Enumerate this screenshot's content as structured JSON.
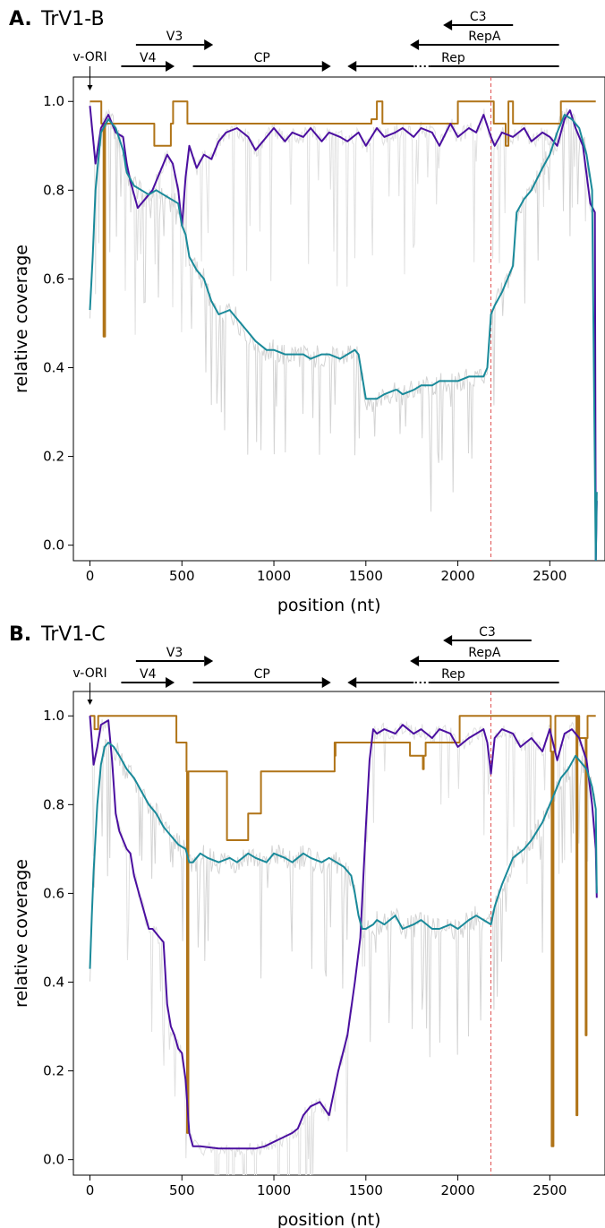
{
  "chart_data": [
    {
      "type": "line",
      "panel_letter": "A.",
      "panel_name": "TrV1-B",
      "xlabel": "position (nt)",
      "ylabel": "relative coverage",
      "xlim": [
        -90,
        2800
      ],
      "ylim": [
        -0.035,
        1.055
      ],
      "xticks": [
        0,
        500,
        1000,
        1500,
        2000,
        2500
      ],
      "yticks": [
        "0.0",
        "0.2",
        "0.4",
        "0.6",
        "0.8",
        "1.0"
      ],
      "reference_line_x": 2180,
      "origin_label": "v-ORI",
      "genes": [
        {
          "name": "V3",
          "start": 250,
          "end": 670,
          "direction": "forward"
        },
        {
          "name": "V4",
          "start": 170,
          "end": 460,
          "direction": "forward"
        },
        {
          "name": "CP",
          "start": 560,
          "end": 1310,
          "direction": "forward"
        },
        {
          "name": "C3",
          "start": 2300,
          "end": 1920,
          "direction": "reverse"
        },
        {
          "name": "RepA",
          "start": 2550,
          "end": 1740,
          "direction": "reverse"
        },
        {
          "name": "Rep",
          "start": 2550,
          "end": 1400,
          "direction": "reverse",
          "dotted_from": 1760,
          "dotted_to": 1850
        }
      ],
      "series": [
        {
          "color": "#b07418",
          "style": "step",
          "x": [
            0,
            60,
            62,
            72,
            74,
            80,
            82,
            120,
            350,
            440,
            452,
            520,
            530,
            1520,
            1530,
            1560,
            1590,
            1810,
            1990,
            2000,
            2170,
            2195,
            2260,
            2275,
            2300,
            2550,
            2560,
            2750
          ],
          "y": [
            1.0,
            1.0,
            0.95,
            0.95,
            0.47,
            0.47,
            0.95,
            0.95,
            0.9,
            0.95,
            1.0,
            1.0,
            0.95,
            0.95,
            0.96,
            1.0,
            0.95,
            0.95,
            0.95,
            1.0,
            1.0,
            0.95,
            0.9,
            1.0,
            0.95,
            0.95,
            1.0,
            1.0
          ]
        },
        {
          "color": "#4b0fa0",
          "style": "line",
          "x": [
            0,
            30,
            60,
            100,
            140,
            180,
            200,
            220,
            260,
            300,
            340,
            380,
            420,
            450,
            480,
            500,
            520,
            540,
            580,
            620,
            660,
            700,
            740,
            800,
            860,
            900,
            960,
            1000,
            1060,
            1100,
            1160,
            1200,
            1260,
            1300,
            1360,
            1400,
            1460,
            1500,
            1560,
            1600,
            1660,
            1700,
            1760,
            1800,
            1860,
            1900,
            1960,
            2000,
            2060,
            2100,
            2140,
            2180,
            2200,
            2240,
            2300,
            2360,
            2400,
            2460,
            2500,
            2540,
            2580,
            2610,
            2640,
            2680,
            2720,
            2745,
            2750,
            2755
          ],
          "y": [
            0.99,
            0.86,
            0.94,
            0.97,
            0.93,
            0.92,
            0.86,
            0.82,
            0.76,
            0.78,
            0.8,
            0.84,
            0.88,
            0.86,
            0.8,
            0.72,
            0.83,
            0.9,
            0.85,
            0.88,
            0.87,
            0.91,
            0.93,
            0.94,
            0.92,
            0.89,
            0.92,
            0.94,
            0.91,
            0.93,
            0.92,
            0.94,
            0.91,
            0.93,
            0.92,
            0.91,
            0.93,
            0.9,
            0.94,
            0.92,
            0.93,
            0.94,
            0.92,
            0.94,
            0.93,
            0.9,
            0.95,
            0.92,
            0.94,
            0.93,
            0.97,
            0.92,
            0.9,
            0.93,
            0.92,
            0.94,
            0.91,
            0.93,
            0.92,
            0.9,
            0.96,
            0.98,
            0.94,
            0.9,
            0.77,
            0.75,
            -0.04,
            0.1
          ]
        },
        {
          "color": "#1a8a9a",
          "style": "line",
          "x": [
            0,
            15,
            30,
            60,
            100,
            140,
            180,
            200,
            240,
            280,
            320,
            360,
            400,
            440,
            480,
            500,
            520,
            540,
            580,
            620,
            660,
            700,
            760,
            800,
            860,
            900,
            960,
            1000,
            1060,
            1100,
            1160,
            1200,
            1260,
            1300,
            1360,
            1400,
            1440,
            1460,
            1480,
            1500,
            1560,
            1600,
            1660,
            1670,
            1700,
            1760,
            1800,
            1860,
            1900,
            1960,
            2000,
            2060,
            2100,
            2140,
            2160,
            2180,
            2200,
            2240,
            2300,
            2320,
            2360,
            2400,
            2460,
            2500,
            2540,
            2580,
            2620,
            2660,
            2700,
            2730,
            2750,
            2755
          ],
          "y": [
            0.53,
            0.65,
            0.8,
            0.93,
            0.96,
            0.94,
            0.89,
            0.84,
            0.81,
            0.8,
            0.79,
            0.8,
            0.79,
            0.78,
            0.77,
            0.72,
            0.7,
            0.65,
            0.62,
            0.6,
            0.55,
            0.52,
            0.53,
            0.51,
            0.48,
            0.46,
            0.44,
            0.44,
            0.43,
            0.43,
            0.43,
            0.42,
            0.43,
            0.43,
            0.42,
            0.43,
            0.44,
            0.43,
            0.38,
            0.33,
            0.33,
            0.34,
            0.35,
            0.35,
            0.34,
            0.35,
            0.36,
            0.36,
            0.37,
            0.37,
            0.37,
            0.38,
            0.38,
            0.38,
            0.4,
            0.52,
            0.54,
            0.57,
            0.63,
            0.75,
            0.78,
            0.8,
            0.85,
            0.88,
            0.93,
            0.97,
            0.96,
            0.94,
            0.88,
            0.8,
            -0.04,
            0.12
          ]
        }
      ]
    },
    {
      "type": "line",
      "panel_letter": "B.",
      "panel_name": "TrV1-C",
      "xlabel": "position (nt)",
      "ylabel": "relative coverage",
      "xlim": [
        -90,
        2800
      ],
      "ylim": [
        -0.035,
        1.055
      ],
      "xticks": [
        0,
        500,
        1000,
        1500,
        2000,
        2500
      ],
      "yticks": [
        "0.0",
        "0.2",
        "0.4",
        "0.6",
        "0.8",
        "1.0"
      ],
      "reference_line_x": 2180,
      "origin_label": "v-ORI",
      "genes": [
        {
          "name": "V3",
          "start": 250,
          "end": 670,
          "direction": "forward"
        },
        {
          "name": "V4",
          "start": 170,
          "end": 460,
          "direction": "forward"
        },
        {
          "name": "CP",
          "start": 560,
          "end": 1310,
          "direction": "forward"
        },
        {
          "name": "C3",
          "start": 2400,
          "end": 1920,
          "direction": "reverse"
        },
        {
          "name": "RepA",
          "start": 2550,
          "end": 1740,
          "direction": "reverse"
        },
        {
          "name": "Rep",
          "start": 2550,
          "end": 1400,
          "direction": "reverse",
          "dotted_from": 1760,
          "dotted_to": 1850
        }
      ],
      "series": [
        {
          "color": "#b07418",
          "style": "step",
          "x": [
            0,
            20,
            25,
            40,
            45,
            460,
            470,
            510,
            525,
            528,
            535,
            735,
            745,
            850,
            860,
            920,
            930,
            1330,
            1332,
            1335,
            1340,
            1720,
            1740,
            1800,
            1810,
            1815,
            1825,
            2000,
            2010,
            2500,
            2505,
            2510,
            2520,
            2530,
            2640,
            2645,
            2650,
            2655,
            2660,
            2690,
            2695,
            2700,
            2705,
            2710,
            2750
          ],
          "y": [
            1.0,
            1.0,
            0.97,
            0.97,
            1.0,
            1.0,
            0.94,
            0.94,
            0.875,
            0.06,
            0.875,
            0.875,
            0.72,
            0.72,
            0.78,
            0.78,
            0.875,
            0.94,
            0.91,
            0.94,
            0.94,
            0.94,
            0.91,
            0.91,
            0.88,
            0.91,
            0.94,
            0.94,
            1.0,
            1.0,
            0.92,
            0.03,
            0.92,
            1.0,
            1.0,
            0.1,
            1.0,
            1.0,
            0.95,
            0.95,
            0.28,
            0.95,
            1.0,
            1.0,
            1.0
          ]
        },
        {
          "color": "#4b0fa0",
          "style": "line",
          "x": [
            0,
            20,
            40,
            60,
            100,
            120,
            140,
            160,
            180,
            200,
            220,
            240,
            260,
            280,
            300,
            320,
            340,
            360,
            380,
            400,
            420,
            440,
            460,
            480,
            500,
            520,
            540,
            560,
            600,
            700,
            800,
            900,
            950,
            1000,
            1050,
            1100,
            1130,
            1160,
            1200,
            1250,
            1300,
            1350,
            1400,
            1440,
            1470,
            1500,
            1520,
            1540,
            1560,
            1600,
            1660,
            1700,
            1760,
            1800,
            1860,
            1900,
            1960,
            2000,
            2060,
            2100,
            2140,
            2160,
            2180,
            2200,
            2240,
            2300,
            2340,
            2400,
            2460,
            2500,
            2540,
            2580,
            2620,
            2660,
            2700,
            2730,
            2750,
            2755
          ],
          "y": [
            1.0,
            0.89,
            0.93,
            0.98,
            0.99,
            0.9,
            0.78,
            0.74,
            0.72,
            0.7,
            0.69,
            0.64,
            0.61,
            0.58,
            0.55,
            0.52,
            0.52,
            0.51,
            0.5,
            0.49,
            0.35,
            0.3,
            0.28,
            0.25,
            0.24,
            0.18,
            0.06,
            0.03,
            0.03,
            0.025,
            0.025,
            0.025,
            0.03,
            0.04,
            0.05,
            0.06,
            0.07,
            0.1,
            0.12,
            0.13,
            0.1,
            0.2,
            0.28,
            0.4,
            0.5,
            0.75,
            0.9,
            0.97,
            0.96,
            0.97,
            0.96,
            0.98,
            0.96,
            0.97,
            0.95,
            0.97,
            0.96,
            0.93,
            0.95,
            0.96,
            0.97,
            0.94,
            0.87,
            0.95,
            0.97,
            0.96,
            0.93,
            0.95,
            0.92,
            0.97,
            0.9,
            0.96,
            0.97,
            0.95,
            0.9,
            0.8,
            0.7,
            0.59
          ]
        },
        {
          "color": "#1a8a9a",
          "style": "line",
          "x": [
            0,
            10,
            20,
            40,
            60,
            80,
            100,
            130,
            160,
            200,
            240,
            280,
            320,
            360,
            400,
            440,
            480,
            520,
            540,
            560,
            600,
            640,
            700,
            760,
            800,
            860,
            900,
            960,
            1000,
            1060,
            1100,
            1160,
            1200,
            1260,
            1300,
            1340,
            1380,
            1420,
            1440,
            1460,
            1480,
            1500,
            1540,
            1560,
            1600,
            1660,
            1700,
            1760,
            1800,
            1860,
            1900,
            1960,
            2000,
            2060,
            2100,
            2140,
            2180,
            2200,
            2240,
            2300,
            2360,
            2400,
            2460,
            2500,
            2560,
            2600,
            2640,
            2660,
            2700,
            2730,
            2750,
            2755
          ],
          "y": [
            0.43,
            0.55,
            0.65,
            0.8,
            0.89,
            0.93,
            0.94,
            0.93,
            0.91,
            0.88,
            0.86,
            0.83,
            0.8,
            0.78,
            0.75,
            0.73,
            0.71,
            0.7,
            0.67,
            0.67,
            0.69,
            0.68,
            0.67,
            0.68,
            0.67,
            0.69,
            0.68,
            0.67,
            0.69,
            0.68,
            0.67,
            0.69,
            0.68,
            0.67,
            0.68,
            0.67,
            0.66,
            0.64,
            0.6,
            0.55,
            0.52,
            0.52,
            0.53,
            0.54,
            0.53,
            0.55,
            0.52,
            0.53,
            0.54,
            0.52,
            0.52,
            0.53,
            0.52,
            0.54,
            0.55,
            0.54,
            0.53,
            0.57,
            0.62,
            0.68,
            0.7,
            0.72,
            0.76,
            0.8,
            0.86,
            0.88,
            0.91,
            0.9,
            0.88,
            0.84,
            0.79,
            0.6
          ]
        }
      ]
    }
  ]
}
